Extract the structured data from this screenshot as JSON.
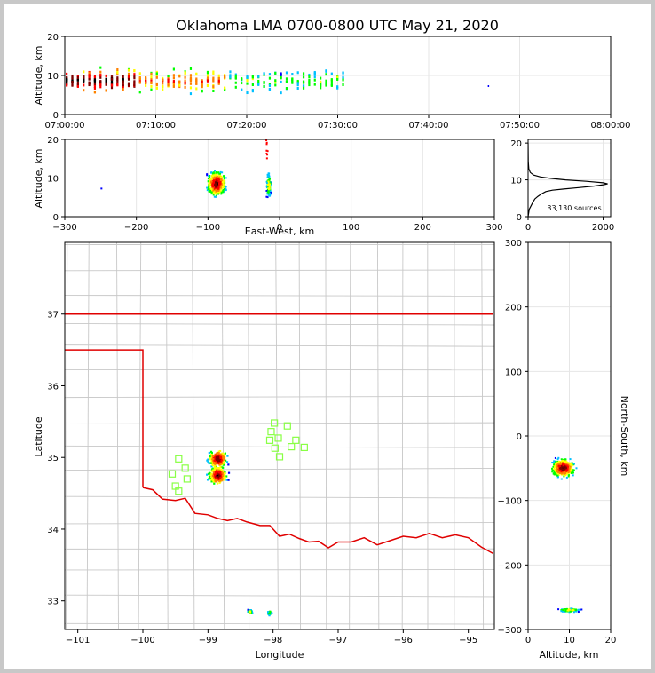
{
  "title": "Oklahoma LMA 0700-0800 UTC May 21, 2020",
  "colors": {
    "state_border": "#e00000",
    "county_lines": "#c8c8c8",
    "stations": "#88ff44",
    "grid": "#e6e6e6",
    "density_scale": [
      "#ffffff",
      "#0000ff",
      "#00c0ff",
      "#00ff00",
      "#ffff00",
      "#ff8000",
      "#ff0000",
      "#800000",
      "#000000"
    ]
  },
  "chart_data": [
    {
      "id": "time_height",
      "type": "heatmap",
      "xlabel": "",
      "ylabel": "Altitude, km",
      "x_ticks": [
        "07:00:00",
        "07:10:00",
        "07:20:00",
        "07:30:00",
        "07:40:00",
        "07:50:00",
        "08:00:00"
      ],
      "xlim_minutes": [
        0,
        60
      ],
      "ylim": [
        0,
        20
      ],
      "y_ticks": [
        "0",
        "10",
        "20"
      ],
      "grid": true,
      "active_period": [
        "07:00:00",
        "07:31:00"
      ]
    },
    {
      "id": "east_west_altitude",
      "type": "heatmap",
      "xlabel": "East-West, km",
      "ylabel": "Altitude, km",
      "xlim": [
        -300,
        300
      ],
      "ylim": [
        0,
        20
      ],
      "x_ticks": [
        "−300",
        "−200",
        "−100",
        "0",
        "100",
        "200",
        "300"
      ],
      "y_ticks": [
        "0",
        "10",
        "20"
      ],
      "grid": true,
      "clusters": [
        {
          "x": -88,
          "alt": 8.5
        },
        {
          "x": -15,
          "alt": 8
        }
      ]
    },
    {
      "id": "altitude_histogram",
      "type": "line",
      "xlabel": "",
      "ylabel": "",
      "xlim": [
        0,
        2200
      ],
      "ylim": [
        0,
        21
      ],
      "x_ticks": [
        "0",
        "2000"
      ],
      "y_ticks": [
        "0",
        "10",
        "20"
      ],
      "annotation": "33,130 sources",
      "profile": [
        [
          0,
          0.0
        ],
        [
          30,
          2.0
        ],
        [
          120,
          3.8
        ],
        [
          180,
          4.8
        ],
        [
          260,
          5.5
        ],
        [
          330,
          6.0
        ],
        [
          380,
          6.3
        ],
        [
          470,
          6.8
        ],
        [
          650,
          7.2
        ],
        [
          950,
          7.5
        ],
        [
          1350,
          7.9
        ],
        [
          1750,
          8.3
        ],
        [
          2020,
          8.7
        ],
        [
          2120,
          8.9
        ],
        [
          2000,
          9.2
        ],
        [
          1550,
          9.6
        ],
        [
          1000,
          10.0
        ],
        [
          600,
          10.4
        ],
        [
          330,
          10.8
        ],
        [
          150,
          11.3
        ],
        [
          60,
          12.0
        ],
        [
          20,
          13.0
        ],
        [
          5,
          15.0
        ],
        [
          0,
          20.0
        ]
      ]
    },
    {
      "id": "plan_view",
      "type": "heatmap",
      "xlabel": "Longitude",
      "ylabel": "Latitude",
      "xlim": [
        -101.2,
        -94.6
      ],
      "ylim": [
        32.6,
        38.0
      ],
      "x_ticks": [
        "−101",
        "−100",
        "−99",
        "−98",
        "−97",
        "−96",
        "−95"
      ],
      "y_ticks": [
        "33",
        "34",
        "35",
        "36",
        "37"
      ],
      "clusters": [
        {
          "lon": -98.85,
          "lat": 34.75
        },
        {
          "lon": -98.85,
          "lat": 34.98
        },
        {
          "lon": -98.35,
          "lat": 32.85
        },
        {
          "lon": -98.05,
          "lat": 32.83
        }
      ],
      "stations": [
        {
          "lon": -99.45,
          "lat": 34.98
        },
        {
          "lon": -99.35,
          "lat": 34.85
        },
        {
          "lon": -99.55,
          "lat": 34.77
        },
        {
          "lon": -99.32,
          "lat": 34.7
        },
        {
          "lon": -99.5,
          "lat": 34.6
        },
        {
          "lon": -99.45,
          "lat": 34.53
        },
        {
          "lon": -97.98,
          "lat": 35.48
        },
        {
          "lon": -97.78,
          "lat": 35.44
        },
        {
          "lon": -98.03,
          "lat": 35.36
        },
        {
          "lon": -97.92,
          "lat": 35.27
        },
        {
          "lon": -98.05,
          "lat": 35.24
        },
        {
          "lon": -97.65,
          "lat": 35.24
        },
        {
          "lon": -97.97,
          "lat": 35.13
        },
        {
          "lon": -97.72,
          "lat": 35.15
        },
        {
          "lon": -97.52,
          "lat": 35.14
        },
        {
          "lon": -97.9,
          "lat": 35.01
        }
      ]
    },
    {
      "id": "north_south_altitude",
      "type": "heatmap",
      "xlabel": "Altitude, km",
      "ylabel": "North-South, km",
      "xlim": [
        0,
        20
      ],
      "ylim": [
        -300,
        300
      ],
      "x_ticks": [
        "0",
        "10",
        "20"
      ],
      "y_ticks": [
        "−300",
        "−200",
        "−100",
        "0",
        "100",
        "200",
        "300"
      ],
      "clusters": [
        {
          "alt": 8.5,
          "y": -50
        },
        {
          "alt": 10,
          "y": -270
        }
      ]
    }
  ]
}
